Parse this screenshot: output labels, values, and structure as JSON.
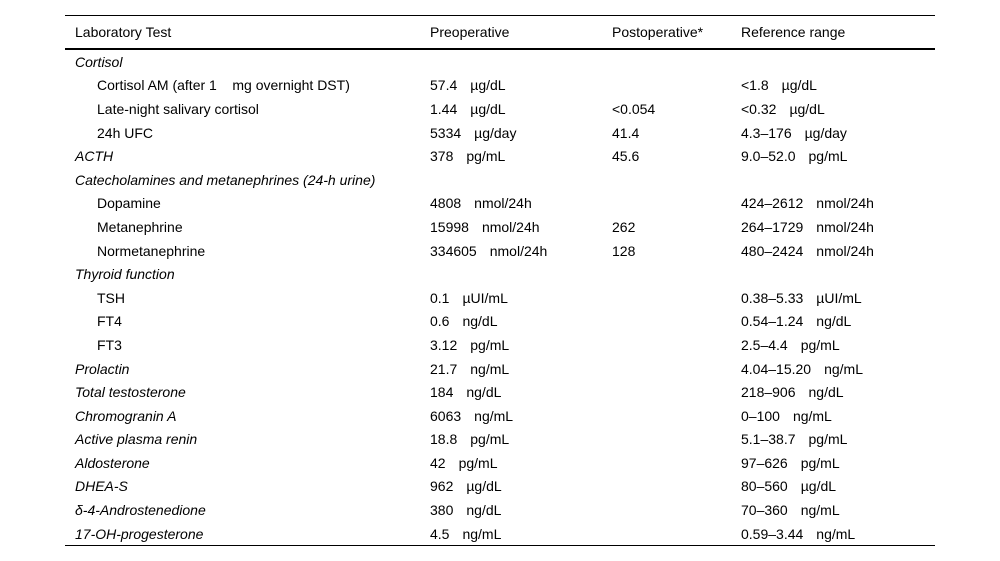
{
  "table": {
    "columns": [
      "Laboratory Test",
      "Preoperative",
      "Postoperative*",
      "Reference range"
    ],
    "rows": [
      {
        "label": "Cortisol",
        "indent": false,
        "pre_value": "",
        "pre_unit": "",
        "post": "",
        "ref_value": "",
        "ref_unit": ""
      },
      {
        "label": "Cortisol AM (after 1    mg overnight DST)",
        "indent": true,
        "pre_value": "57.4",
        "pre_unit": "µg/dL",
        "post": "",
        "ref_value": "<1.8",
        "ref_unit": "µg/dL"
      },
      {
        "label": "Late-night salivary cortisol",
        "indent": true,
        "pre_value": "1.44",
        "pre_unit": "µg/dL",
        "post": "<0.054",
        "ref_value": "<0.32",
        "ref_unit": "µg/dL"
      },
      {
        "label": "24h UFC",
        "indent": true,
        "pre_value": "5334",
        "pre_unit": "µg/day",
        "post": "41.4",
        "ref_value": "4.3–176",
        "ref_unit": "µg/day"
      },
      {
        "label": "ACTH",
        "indent": false,
        "pre_value": "378",
        "pre_unit": "pg/mL",
        "post": "45.6",
        "ref_value": "9.0–52.0",
        "ref_unit": "pg/mL"
      },
      {
        "label": "Catecholamines and metanephrines (24-h urine)",
        "indent": false,
        "pre_value": "",
        "pre_unit": "",
        "post": "",
        "ref_value": "",
        "ref_unit": ""
      },
      {
        "label": "Dopamine",
        "indent": true,
        "pre_value": "4808",
        "pre_unit": "nmol/24h",
        "post": "",
        "ref_value": "424–2612",
        "ref_unit": "nmol/24h"
      },
      {
        "label": "Metanephrine",
        "indent": true,
        "pre_value": "15998",
        "pre_unit": "nmol/24h",
        "post": "262",
        "ref_value": "264–1729",
        "ref_unit": "nmol/24h"
      },
      {
        "label": "Normetanephrine",
        "indent": true,
        "pre_value": "334605",
        "pre_unit": "nmol/24h",
        "post": "128",
        "ref_value": "480–2424",
        "ref_unit": "nmol/24h"
      },
      {
        "label": "Thyroid function",
        "indent": false,
        "pre_value": "",
        "pre_unit": "",
        "post": "",
        "ref_value": "",
        "ref_unit": ""
      },
      {
        "label": "TSH",
        "indent": true,
        "pre_value": "0.1",
        "pre_unit": "µUI/mL",
        "post": "",
        "ref_value": "0.38–5.33",
        "ref_unit": "µUI/mL"
      },
      {
        "label": "FT4",
        "indent": true,
        "pre_value": "0.6",
        "pre_unit": "ng/dL",
        "post": "",
        "ref_value": "0.54–1.24",
        "ref_unit": "ng/dL"
      },
      {
        "label": "FT3",
        "indent": true,
        "pre_value": "3.12",
        "pre_unit": "pg/mL",
        "post": "",
        "ref_value": "2.5–4.4",
        "ref_unit": "pg/mL"
      },
      {
        "label": "Prolactin",
        "indent": false,
        "pre_value": "21.7",
        "pre_unit": "ng/mL",
        "post": "",
        "ref_value": "4.04–15.20",
        "ref_unit": "ng/mL"
      },
      {
        "label": "Total testosterone",
        "indent": false,
        "pre_value": "184",
        "pre_unit": "ng/dL",
        "post": "",
        "ref_value": "218–906",
        "ref_unit": "ng/dL"
      },
      {
        "label": "Chromogranin A",
        "indent": false,
        "pre_value": "6063",
        "pre_unit": "ng/mL",
        "post": "",
        "ref_value": "0–100",
        "ref_unit": "ng/mL"
      },
      {
        "label": "Active plasma renin",
        "indent": false,
        "pre_value": "18.8",
        "pre_unit": "pg/mL",
        "post": "",
        "ref_value": "5.1–38.7",
        "ref_unit": "pg/mL"
      },
      {
        "label": "Aldosterone",
        "indent": false,
        "pre_value": "42",
        "pre_unit": "pg/mL",
        "post": "",
        "ref_value": "97–626",
        "ref_unit": "pg/mL"
      },
      {
        "label": "DHEA-S",
        "indent": false,
        "pre_value": "962",
        "pre_unit": "µg/dL",
        "post": "",
        "ref_value": "80–560",
        "ref_unit": "µg/dL"
      },
      {
        "label": "δ-4-Androstenedione",
        "indent": false,
        "pre_value": "380",
        "pre_unit": "ng/dL",
        "post": "",
        "ref_value": "70–360",
        "ref_unit": "ng/mL"
      },
      {
        "label": "17-OH-progesterone",
        "indent": false,
        "pre_value": "4.5",
        "pre_unit": "ng/mL",
        "post": "",
        "ref_value": "0.59–3.44",
        "ref_unit": "ng/mL"
      }
    ]
  }
}
